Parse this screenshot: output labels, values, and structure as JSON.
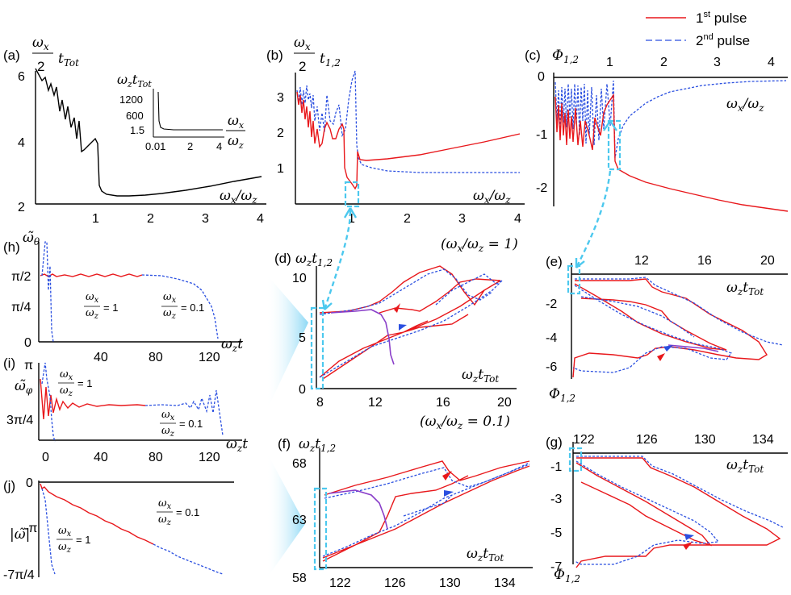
{
  "legend": {
    "first": "1",
    "first_sup": "st",
    "first_rest": " pulse",
    "second": "2",
    "second_sup": "nd",
    "second_rest": " pulse",
    "first_color": "#e8171b",
    "second_color": "#2a4fe0"
  },
  "panels": {
    "a": {
      "tag": "(a)",
      "ylabel": "ωx/2 tTot",
      "xlabel": "ωx/ωz",
      "yticks": [
        "6",
        "4",
        "2"
      ],
      "xticks": [
        "1",
        "2",
        "3",
        "4"
      ],
      "inset": {
        "ylabel": "ωz tTot",
        "yticks": [
          "1200",
          "600",
          "1.5"
        ],
        "xticks": [
          "0.01",
          "2",
          "4"
        ],
        "xlabel": "ωx/ωz"
      }
    },
    "b": {
      "tag": "(b)",
      "ylabel": "ωx/2 t1,2",
      "xlabel": "ωx/ωz",
      "yticks": [
        "3",
        "2",
        "1"
      ],
      "xticks": [
        "1",
        "2",
        "3",
        "4"
      ]
    },
    "c": {
      "tag": "(c)",
      "ylabel": "Φ1,2",
      "xlabel": "ωx/ωz",
      "yticks": [
        "0",
        "-1",
        "-2"
      ],
      "xticks": [
        "1",
        "2",
        "3",
        "4"
      ]
    },
    "d": {
      "tag": "(d)",
      "ylabel": "ωz t1,2",
      "xlabel": "ωz tTot",
      "note": "(ωx/ωz = 1)",
      "yticks": [
        "10",
        "5",
        "0"
      ],
      "xticks": [
        "8",
        "12",
        "16",
        "20"
      ]
    },
    "e": {
      "tag": "(e)",
      "ylabel": "Φ1,2",
      "xlabel": "ωz tTot",
      "yticks": [
        "-2",
        "-4",
        "-6"
      ],
      "xticks": [
        "12",
        "16",
        "20"
      ]
    },
    "f": {
      "tag": "(f)",
      "ylabel": "ωz t1,2",
      "xlabel": "ωz tTot",
      "note": "(ωx/ωz = 0.1)",
      "yticks": [
        "68",
        "63",
        "58"
      ],
      "xticks": [
        "122",
        "126",
        "130",
        "134"
      ]
    },
    "g": {
      "tag": "(g)",
      "ylabel": "Φ1,2",
      "xlabel": "ωz tTot",
      "yticks": [
        "-1",
        "-3",
        "-5",
        "-7"
      ],
      "xticks": [
        "122",
        "126",
        "130",
        "134"
      ]
    },
    "h": {
      "tag": "(h)",
      "ylabel": "ω̃θ",
      "xlabel": "ωz t",
      "yticks": [
        "π/2",
        "π/4",
        "0"
      ],
      "xticks": [
        "40",
        "80",
        "120"
      ],
      "ann1": "ωx/ωz = 1",
      "ann2": "ωx/ωz = 0.1"
    },
    "i": {
      "tag": "(i)",
      "ylabel": "ω̃φ",
      "xlabel": "ωz t",
      "yticks": [
        "π",
        "3π/4"
      ],
      "xticks": [
        "0",
        "40",
        "80",
        "120"
      ],
      "ann1": "ωx/ωz = 1",
      "ann2": "ωx/ωz = 0.1"
    },
    "j": {
      "tag": "(j)",
      "ylabel": "|ω̃|",
      "yticks": [
        "0",
        "-π",
        "-7π/4"
      ],
      "ann1": "ωx/ωz = 1",
      "ann2": "ωx/ωz = 0.1"
    }
  }
}
